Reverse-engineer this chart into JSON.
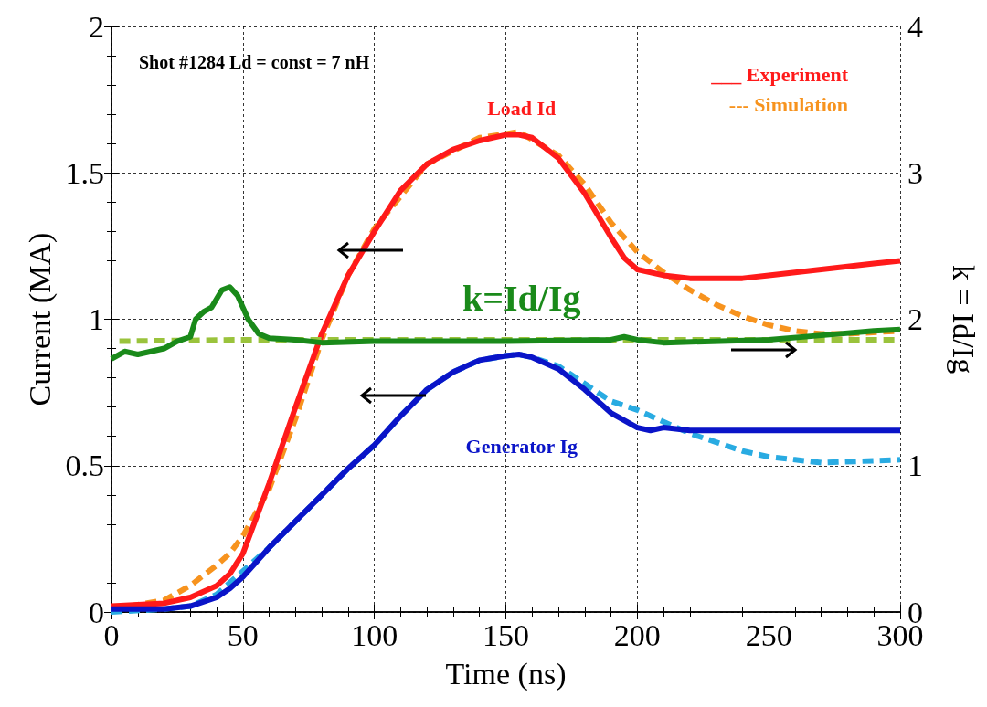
{
  "chart_data": {
    "type": "line",
    "xlabel": "Time (ns)",
    "ylabel": "Current (MA)",
    "y2label": "k = Id/Ig",
    "annotations": [
      "Shot #1284 Ld = const = 7 nH",
      "___ Experiment",
      "--- Simulation"
    ],
    "xlim": [
      0,
      300
    ],
    "xticks": [
      0,
      50,
      100,
      150,
      200,
      250,
      300
    ],
    "ylim": [
      0,
      2
    ],
    "yticks": [
      0,
      0.5,
      1,
      1.5,
      2
    ],
    "y2lim": [
      0,
      4
    ],
    "y2ticks": [
      0,
      1,
      2,
      3,
      4
    ],
    "grid": true,
    "legend": false,
    "marker": "none",
    "series": [
      {
        "color": "#f7931e",
        "line_style": "dashed",
        "x": [
          0,
          20,
          30,
          40,
          45,
          50,
          60,
          70,
          80,
          90,
          100,
          120,
          140,
          155,
          170,
          180,
          190,
          200,
          210,
          220,
          230,
          240,
          250,
          260,
          270,
          280,
          300
        ],
        "values": [
          0.01,
          0.04,
          0.09,
          0.16,
          0.2,
          0.26,
          0.42,
          0.66,
          0.93,
          1.15,
          1.31,
          1.53,
          1.62,
          1.64,
          1.56,
          1.46,
          1.33,
          1.23,
          1.16,
          1.1,
          1.05,
          1.01,
          0.98,
          0.96,
          0.95,
          0.95,
          0.96
        ]
      },
      {
        "name": "Load Id",
        "color": "#ff1a1a",
        "line_style": "solid",
        "x": [
          0,
          20,
          30,
          40,
          45,
          50,
          55,
          60,
          65,
          70,
          80,
          90,
          100,
          110,
          120,
          130,
          140,
          150,
          155,
          160,
          170,
          180,
          190,
          195,
          200,
          210,
          220,
          240,
          250,
          270,
          290,
          300
        ],
        "values": [
          0.02,
          0.03,
          0.05,
          0.09,
          0.13,
          0.2,
          0.32,
          0.44,
          0.57,
          0.7,
          0.95,
          1.15,
          1.3,
          1.44,
          1.53,
          1.58,
          1.61,
          1.63,
          1.63,
          1.62,
          1.55,
          1.43,
          1.28,
          1.21,
          1.17,
          1.15,
          1.14,
          1.14,
          1.15,
          1.17,
          1.19,
          1.2
        ]
      },
      {
        "color": "#29abe2",
        "line_style": "dashed",
        "x": [
          0,
          20,
          30,
          40,
          50,
          60,
          70,
          80,
          90,
          100,
          110,
          120,
          130,
          140,
          150,
          155,
          160,
          170,
          180,
          190,
          200,
          210,
          220,
          230,
          240,
          250,
          260,
          270,
          300
        ],
        "values": [
          0,
          0.01,
          0.02,
          0.06,
          0.14,
          0.22,
          0.31,
          0.4,
          0.49,
          0.57,
          0.67,
          0.76,
          0.82,
          0.86,
          0.875,
          0.88,
          0.87,
          0.84,
          0.78,
          0.72,
          0.69,
          0.65,
          0.61,
          0.58,
          0.55,
          0.53,
          0.52,
          0.51,
          0.52
        ]
      },
      {
        "name": "Generator Ig",
        "color": "#0a14c8",
        "line_style": "solid",
        "x": [
          0,
          20,
          30,
          40,
          45,
          50,
          60,
          70,
          80,
          90,
          100,
          110,
          120,
          130,
          140,
          150,
          155,
          160,
          170,
          180,
          190,
          200,
          205,
          210,
          220,
          250,
          300
        ],
        "values": [
          0.01,
          0.01,
          0.02,
          0.05,
          0.08,
          0.12,
          0.22,
          0.31,
          0.4,
          0.49,
          0.57,
          0.67,
          0.76,
          0.82,
          0.86,
          0.875,
          0.88,
          0.87,
          0.83,
          0.76,
          0.68,
          0.63,
          0.62,
          0.63,
          0.62,
          0.62,
          0.62
        ]
      },
      {
        "axis": "y2",
        "color": "#9ac33c",
        "line_style": "dashed",
        "x": [
          3,
          50,
          100,
          150,
          200,
          250,
          300
        ],
        "values": [
          1.85,
          1.86,
          1.86,
          1.86,
          1.86,
          1.86,
          1.86
        ]
      },
      {
        "name": "k=Id/Ig",
        "axis": "y2",
        "color": "#1a8a1a",
        "line_style": "solid",
        "x": [
          0,
          5,
          10,
          15,
          20,
          25,
          30,
          32,
          35,
          38,
          42,
          45,
          48,
          52,
          56,
          60,
          70,
          80,
          100,
          150,
          190,
          195,
          200,
          210,
          250,
          270,
          290,
          300
        ],
        "values": [
          1.73,
          1.78,
          1.76,
          1.78,
          1.8,
          1.85,
          1.88,
          2.0,
          2.05,
          2.08,
          2.2,
          2.22,
          2.16,
          2.0,
          1.9,
          1.87,
          1.86,
          1.84,
          1.85,
          1.85,
          1.86,
          1.88,
          1.86,
          1.84,
          1.86,
          1.89,
          1.92,
          1.93
        ]
      }
    ]
  }
}
